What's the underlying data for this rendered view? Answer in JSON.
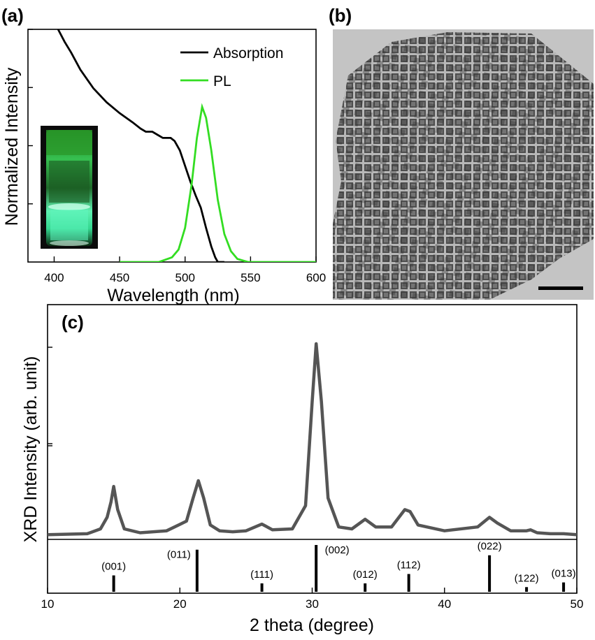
{
  "chart_data": [
    {
      "panel": "(a)",
      "type": "line",
      "xlabel": "Wavelength (nm)",
      "ylabel": "Normalized Intensity",
      "xlim": [
        380,
        600
      ],
      "ylim": [
        0,
        1.5
      ],
      "x_ticks": [
        400,
        450,
        500,
        550,
        600
      ],
      "y_tick_labels": "none",
      "legend_position": "top-right",
      "series": [
        {
          "name": "Absorption",
          "color": "#000000",
          "points": [
            [
              403,
              1.5
            ],
            [
              408,
              1.42
            ],
            [
              413,
              1.35
            ],
            [
              420,
              1.24
            ],
            [
              430,
              1.12
            ],
            [
              440,
              1.03
            ],
            [
              450,
              0.96
            ],
            [
              460,
              0.9
            ],
            [
              466,
              0.86
            ],
            [
              470,
              0.84
            ],
            [
              475,
              0.84
            ],
            [
              479,
              0.82
            ],
            [
              483,
              0.8
            ],
            [
              486,
              0.8
            ],
            [
              489,
              0.8
            ],
            [
              492,
              0.78
            ],
            [
              496,
              0.72
            ],
            [
              500,
              0.62
            ],
            [
              504,
              0.52
            ],
            [
              508,
              0.43
            ],
            [
              512,
              0.35
            ],
            [
              516,
              0.22
            ],
            [
              520,
              0.1
            ],
            [
              523,
              0.03
            ],
            [
              525,
              0.0
            ],
            [
              530,
              0.0
            ]
          ]
        },
        {
          "name": "PL",
          "color": "#33dd22",
          "points": [
            [
              450,
              0.0
            ],
            [
              480,
              0.0
            ],
            [
              490,
              0.03
            ],
            [
              495,
              0.08
            ],
            [
              500,
              0.22
            ],
            [
              505,
              0.5
            ],
            [
              509,
              0.8
            ],
            [
              513,
              1.0
            ],
            [
              516,
              0.93
            ],
            [
              520,
              0.72
            ],
            [
              525,
              0.4
            ],
            [
              530,
              0.18
            ],
            [
              535,
              0.07
            ],
            [
              540,
              0.02
            ],
            [
              548,
              0.0
            ],
            [
              600,
              0.0
            ]
          ]
        }
      ]
    },
    {
      "panel": "(b)",
      "type": "image",
      "description_visible": "TEM micrograph of cubic nanocrystals with scale bar"
    },
    {
      "panel": "(c)",
      "type": "line",
      "xlabel": "2 theta (degree)",
      "ylabel": "XRD Intensity (arb. unit)",
      "xlim": [
        10,
        50
      ],
      "ylim": [
        0,
        1.0
      ],
      "x_ticks": [
        10,
        20,
        30,
        40,
        50
      ],
      "series": [
        {
          "name": "",
          "color": "#555555",
          "points": [
            [
              10,
              0.01
            ],
            [
              13,
              0.015
            ],
            [
              14,
              0.04
            ],
            [
              14.5,
              0.1
            ],
            [
              14.8,
              0.18
            ],
            [
              15.0,
              0.26
            ],
            [
              15.3,
              0.14
            ],
            [
              15.8,
              0.04
            ],
            [
              17,
              0.02
            ],
            [
              19,
              0.03
            ],
            [
              20.5,
              0.08
            ],
            [
              21.0,
              0.2
            ],
            [
              21.4,
              0.29
            ],
            [
              21.8,
              0.2
            ],
            [
              22.3,
              0.06
            ],
            [
              23,
              0.03
            ],
            [
              24,
              0.025
            ],
            [
              25,
              0.03
            ],
            [
              26.2,
              0.065
            ],
            [
              27,
              0.035
            ],
            [
              28.5,
              0.04
            ],
            [
              29.5,
              0.16
            ],
            [
              30.0,
              0.7
            ],
            [
              30.3,
              1.0
            ],
            [
              30.7,
              0.7
            ],
            [
              31.2,
              0.2
            ],
            [
              32,
              0.05
            ],
            [
              33,
              0.04
            ],
            [
              34.0,
              0.09
            ],
            [
              34.8,
              0.05
            ],
            [
              36,
              0.05
            ],
            [
              37.0,
              0.14
            ],
            [
              37.4,
              0.13
            ],
            [
              38,
              0.06
            ],
            [
              40,
              0.03
            ],
            [
              42.5,
              0.05
            ],
            [
              43.4,
              0.1
            ],
            [
              44,
              0.07
            ],
            [
              45,
              0.03
            ],
            [
              46.2,
              0.03
            ],
            [
              46.5,
              0.035
            ],
            [
              47,
              0.02
            ],
            [
              48,
              0.015
            ],
            [
              49,
              0.015
            ],
            [
              50,
              0.01
            ]
          ]
        }
      ],
      "reference_peaks": [
        {
          "hkl": "(001)",
          "two_theta": 15.0,
          "intensity": 0.35
        },
        {
          "hkl": "(011)",
          "two_theta": 21.3,
          "intensity": 0.9
        },
        {
          "hkl": "(111)",
          "two_theta": 26.2,
          "intensity": 0.18
        },
        {
          "hkl": "(002)",
          "two_theta": 30.3,
          "intensity": 1.0
        },
        {
          "hkl": "(012)",
          "two_theta": 34.0,
          "intensity": 0.18
        },
        {
          "hkl": "(112)",
          "two_theta": 37.3,
          "intensity": 0.38
        },
        {
          "hkl": "(022)",
          "two_theta": 43.4,
          "intensity": 0.78
        },
        {
          "hkl": "(122)",
          "two_theta": 46.2,
          "intensity": 0.1
        },
        {
          "hkl": "(013)",
          "two_theta": 49.0,
          "intensity": 0.2
        }
      ]
    }
  ]
}
